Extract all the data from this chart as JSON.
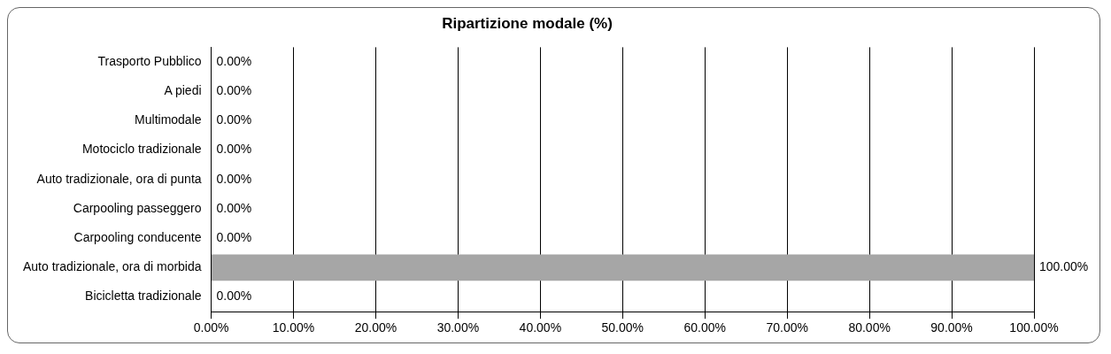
{
  "chart_data": {
    "type": "bar",
    "orientation": "horizontal",
    "title": "Ripartizione modale (%)",
    "categories": [
      "Trasporto Pubblico",
      "A piedi",
      "Multimodale",
      "Motociclo tradizionale",
      "Auto tradizionale, ora di punta",
      "Carpooling passeggero",
      "Carpooling conducente",
      "Auto tradizionale, ora di morbida",
      "Bicicletta tradizionale"
    ],
    "values": [
      0,
      0,
      0,
      0,
      0,
      0,
      0,
      100,
      0
    ],
    "value_labels": [
      "0.00%",
      "0.00%",
      "0.00%",
      "0.00%",
      "0.00%",
      "0.00%",
      "0.00%",
      "100.00%",
      "0.00%"
    ],
    "color": "#a6a6a6",
    "xlim": [
      0,
      100
    ],
    "xticks": [
      {
        "value": 0,
        "label": "0.00%"
      },
      {
        "value": 10,
        "label": "10.00%"
      },
      {
        "value": 20,
        "label": "20.00%"
      },
      {
        "value": 30,
        "label": "30.00%"
      },
      {
        "value": 40,
        "label": "40.00%"
      },
      {
        "value": 50,
        "label": "50.00%"
      },
      {
        "value": 60,
        "label": "60.00%"
      },
      {
        "value": 70,
        "label": "70.00%"
      },
      {
        "value": 80,
        "label": "80.00%"
      },
      {
        "value": 90,
        "label": "90.00%"
      },
      {
        "value": 100,
        "label": "100.00%"
      }
    ],
    "grid": "x",
    "legend": false
  }
}
